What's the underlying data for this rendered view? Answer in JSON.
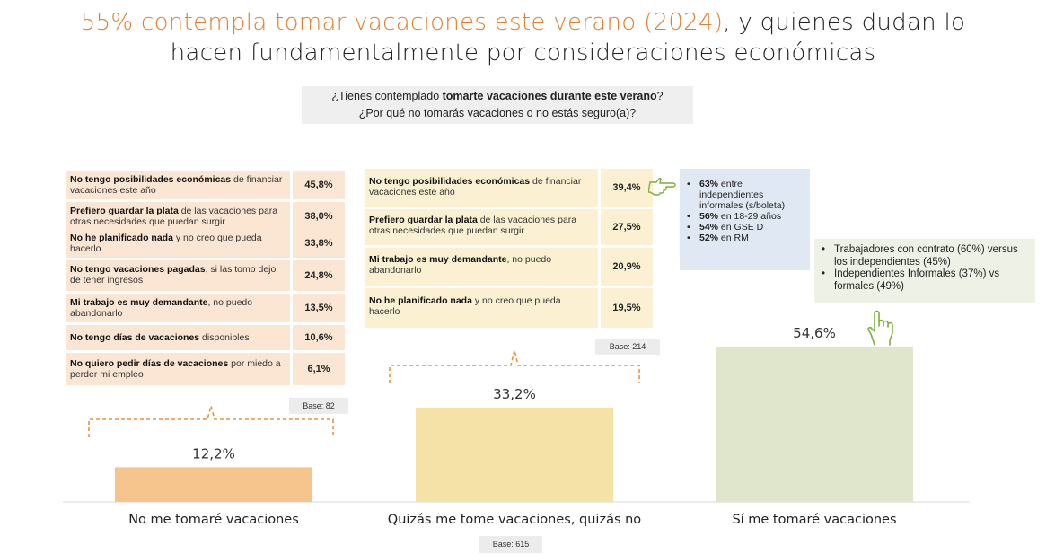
{
  "title": {
    "highlight": "55% contempla tomar vacaciones este verano (2024)",
    "rest_line1": ", y quienes dudan lo",
    "line2": "hacen fundamentalmente por consideraciones económicas"
  },
  "question": {
    "line1_pre": "¿Tienes contemplado ",
    "line1_bold": "tomarte vacaciones durante este verano",
    "line1_post": "?",
    "line2": "¿Por qué no tomarás vacaciones o no estás seguro(a)?"
  },
  "left_reasons": {
    "rows": [
      {
        "bold": "No tengo posibilidades económicas",
        "rest": " de financiar vacaciones este año",
        "value": "45,8%"
      },
      {
        "bold": "Prefiero guardar la plata",
        "rest": " de las vacaciones para otras necesidades que puedan surgir",
        "value": "38,0%"
      },
      {
        "bold": "No he planificado nada",
        "rest": " y no creo que pueda hacerlo",
        "value": "33,8%"
      },
      {
        "bold": "No tengo vacaciones pagadas",
        "rest": ", si las tomo dejo de tener ingresos",
        "value": "24,8%"
      },
      {
        "bold": "Mi trabajo es muy demandante",
        "rest": ", no puedo abandonarlo",
        "value": "13,5%"
      },
      {
        "bold": "No tengo días de vacaciones",
        "rest": " disponibles",
        "value": "10,6%"
      },
      {
        "bold": "No quiero pedir días de vacaciones",
        "rest": " por miedo a perder mi empleo",
        "value": "6,1%"
      }
    ],
    "base": "Base: 82"
  },
  "mid_reasons": {
    "rows": [
      {
        "bold": "No tengo posibilidades económicas",
        "rest": " de financiar vacaciones este año",
        "value": "39,4%"
      },
      {
        "bold": "Prefiero guardar la plata",
        "rest": " de las vacaciones para otras necesidades que puedan surgir",
        "value": "27,5%"
      },
      {
        "bold": "Mi trabajo es muy demandante",
        "rest": ", no puedo abandonarlo",
        "value": "20,9%"
      },
      {
        "bold": "No he planificado nada",
        "rest": " y no creo que pueda hacerlo",
        "value": "19,5%"
      }
    ],
    "base": "Base: 214"
  },
  "info_box": {
    "items": [
      {
        "bold": "63%",
        "rest": " entre independientes informales (s/boleta)"
      },
      {
        "bold": "56%",
        "rest": " en 18-29 años"
      },
      {
        "bold": "54%",
        "rest": " en GSE D"
      },
      {
        "bold": "52%",
        "rest": " en RM"
      }
    ]
  },
  "green_box": {
    "items": [
      "Trabajadores con contrato (60%) versus los independientes (45%)",
      "Independientes Informales (37%) vs formales (49%)"
    ]
  },
  "chart_data": {
    "type": "bar",
    "categories": [
      "No me tomaré vacaciones",
      "Quizás me tome vacaciones, quizás no",
      "Sí me tomaré vacaciones"
    ],
    "values": [
      12.2,
      33.2,
      54.6
    ],
    "value_labels": [
      "12,2%",
      "33,2%",
      "54,6%"
    ],
    "colors": [
      "#f6c48d",
      "#f5e2a6",
      "#dfe6cc"
    ],
    "ylim": [
      0,
      60
    ],
    "base": "Base: 615"
  },
  "colors": {
    "accent": "#e0812e",
    "bracket": "#e8923a",
    "hand_icon": "#7fae3c"
  },
  "icons": [
    "pointing-hand-icon",
    "hand-pointing-up-icon"
  ]
}
